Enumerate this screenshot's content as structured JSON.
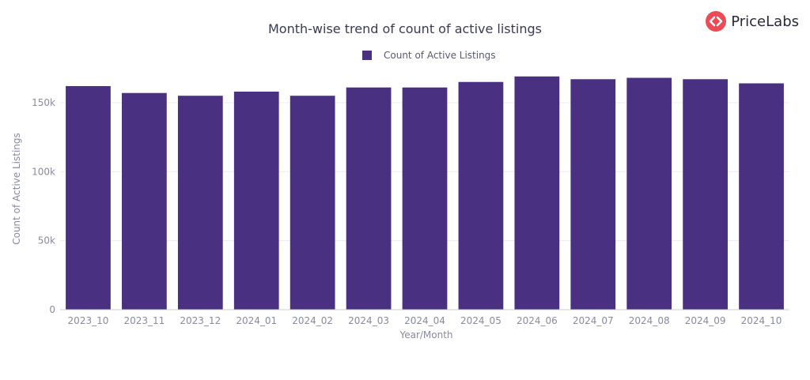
{
  "brand": {
    "name": "PriceLabs",
    "icon": "code-brackets-icon",
    "color": "#ee4a55"
  },
  "chart_data": {
    "type": "bar",
    "title": "Month-wise trend of count of active listings",
    "xlabel": "Year/Month",
    "ylabel": "Count of Active Listings",
    "legend": "top-center",
    "grid": true,
    "bar_color": "#4a3080",
    "categories": [
      "2023_10",
      "2023_11",
      "2023_12",
      "2024_01",
      "2024_02",
      "2024_03",
      "2024_04",
      "2024_05",
      "2024_06",
      "2024_07",
      "2024_08",
      "2024_09",
      "2024_10"
    ],
    "series": [
      {
        "name": "Count of Active Listings",
        "values": [
          162000,
          157000,
          155000,
          158000,
          155000,
          161000,
          161000,
          165000,
          169000,
          167000,
          168000,
          167000,
          164000
        ]
      }
    ],
    "ylim": [
      0,
      170000
    ],
    "yticks": [
      0,
      50000,
      100000,
      150000
    ],
    "ytick_labels": [
      "0",
      "50k",
      "100k",
      "150k"
    ]
  }
}
